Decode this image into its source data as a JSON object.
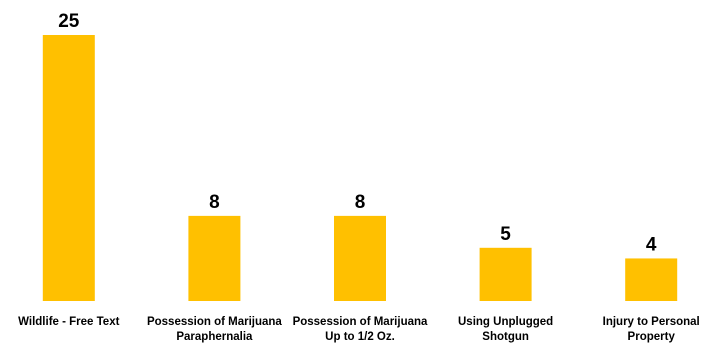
{
  "chart_data": {
    "type": "bar",
    "categories": [
      [
        "Wildlife - Free Text"
      ],
      [
        "Possession of Marijuana",
        "Paraphernalia"
      ],
      [
        "Possession of Marijuana",
        "Up to 1/2 Oz."
      ],
      [
        "Using Unplugged",
        "Shotgun"
      ],
      [
        "Injury to Personal",
        "Property"
      ]
    ],
    "values": [
      25,
      8,
      8,
      5,
      4
    ],
    "data_labels": [
      "25",
      "8",
      "8",
      "5",
      "4"
    ],
    "ylim": [
      0,
      25
    ],
    "grid": false,
    "bar_color": "#FFC000",
    "label_color": "#000000"
  }
}
